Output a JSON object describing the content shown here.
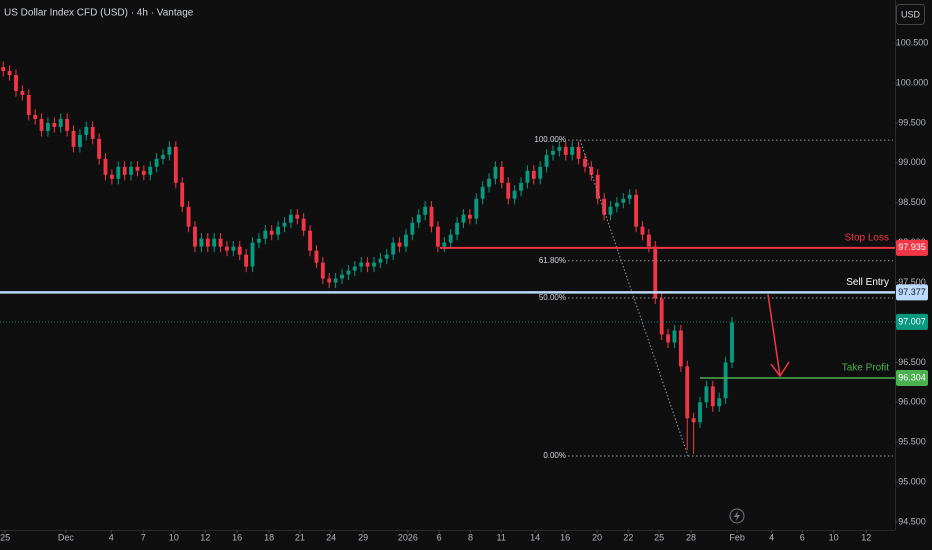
{
  "chart_data": {
    "type": "candlestick",
    "title": "US Dollar Index CFD (USD) · 4h · Vantage",
    "currency": "USD",
    "up_color": "#089981",
    "down_color": "#f23645",
    "xlim": [
      -0.5,
      139.5
    ],
    "ylim": [
      94.4,
      101.04
    ],
    "xticks": [
      {
        "value": 0.3,
        "label": "25"
      },
      {
        "value": 9.8,
        "label": "Dec"
      },
      {
        "value": 16.9,
        "label": "4"
      },
      {
        "value": 21.9,
        "label": "7"
      },
      {
        "value": 26.7,
        "label": "10"
      },
      {
        "value": 31.6,
        "label": "12"
      },
      {
        "value": 36.6,
        "label": "16"
      },
      {
        "value": 41.6,
        "label": "18"
      },
      {
        "value": 46.4,
        "label": "21"
      },
      {
        "value": 51.3,
        "label": "24"
      },
      {
        "value": 56.3,
        "label": "29"
      },
      {
        "value": 63.3,
        "label": "2026"
      },
      {
        "value": 68.2,
        "label": "6"
      },
      {
        "value": 73.1,
        "label": "8"
      },
      {
        "value": 77.9,
        "label": "11"
      },
      {
        "value": 83.2,
        "label": "14"
      },
      {
        "value": 87.9,
        "label": "16"
      },
      {
        "value": 92.9,
        "label": "20"
      },
      {
        "value": 97.8,
        "label": "22"
      },
      {
        "value": 102.6,
        "label": "25"
      },
      {
        "value": 107.6,
        "label": "28"
      },
      {
        "value": 114.8,
        "label": "Feb"
      },
      {
        "value": 120.2,
        "label": "4"
      },
      {
        "value": 125,
        "label": "6"
      },
      {
        "value": 129.9,
        "label": "10"
      },
      {
        "value": 135,
        "label": "12"
      }
    ],
    "yticks": [
      {
        "value": 94.5,
        "label": "94.500"
      },
      {
        "value": 95,
        "label": "95.000"
      },
      {
        "value": 95.5,
        "label": "95.500"
      },
      {
        "value": 96,
        "label": "96.000"
      },
      {
        "value": 96.5,
        "label": "96.500"
      },
      {
        "value": 97,
        "label": "97.000"
      },
      {
        "value": 97.5,
        "label": "97.500"
      },
      {
        "value": 98,
        "label": "98.000"
      },
      {
        "value": 98.5,
        "label": "98.500"
      },
      {
        "value": 99,
        "label": "99.000"
      },
      {
        "value": 99.5,
        "label": "99.500"
      },
      {
        "value": 100,
        "label": "100.000"
      },
      {
        "value": 100.5,
        "label": "100.500"
      }
    ],
    "open": [
      100.2,
      100.15,
      100.1,
      99.9,
      99.85,
      99.6,
      99.55,
      99.4,
      99.5,
      99.45,
      99.55,
      99.4,
      99.2,
      99.35,
      99.45,
      99.3,
      99.05,
      98.85,
      98.8,
      98.95,
      98.85,
      98.95,
      98.9,
      98.85,
      98.95,
      99.05,
      99.1,
      99.2,
      98.75,
      98.45,
      98.2,
      97.95,
      98.05,
      97.95,
      98.05,
      97.95,
      97.9,
      97.95,
      97.85,
      97.7,
      98.0,
      98.05,
      98.15,
      98.1,
      98.2,
      98.25,
      98.35,
      98.3,
      98.15,
      97.9,
      97.75,
      97.55,
      97.5,
      97.55,
      97.6,
      97.65,
      97.7,
      97.75,
      97.7,
      97.75,
      97.8,
      97.85,
      98.0,
      97.95,
      98.1,
      98.25,
      98.35,
      98.45,
      98.2,
      97.95,
      98.0,
      98.1,
      98.25,
      98.35,
      98.3,
      98.55,
      98.7,
      98.8,
      98.95,
      98.75,
      98.55,
      98.65,
      98.75,
      98.9,
      98.8,
      98.95,
      99.1,
      99.15,
      99.2,
      99.1,
      99.2,
      99.05,
      98.95,
      98.85,
      98.55,
      98.35,
      98.45,
      98.5,
      98.55,
      98.6,
      98.2,
      98.1,
      97.95,
      97.3,
      96.85,
      96.75,
      96.9,
      96.45,
      95.8,
      95.75,
      96.0,
      96.2,
      95.95,
      96.05,
      96.5
    ],
    "high": [
      100.27,
      100.22,
      100.17,
      99.97,
      99.92,
      99.67,
      99.62,
      99.57,
      99.57,
      99.62,
      99.62,
      99.47,
      99.42,
      99.52,
      99.52,
      99.37,
      99.12,
      98.92,
      99.02,
      99.02,
      99.02,
      99.02,
      98.97,
      99.02,
      99.12,
      99.17,
      99.27,
      99.27,
      98.82,
      98.52,
      98.27,
      98.12,
      98.12,
      98.12,
      98.12,
      98.02,
      98.02,
      98.02,
      97.92,
      98.07,
      98.12,
      98.22,
      98.22,
      98.27,
      98.32,
      98.42,
      98.42,
      98.37,
      98.22,
      97.97,
      97.82,
      97.62,
      97.62,
      97.67,
      97.72,
      97.77,
      97.82,
      97.82,
      97.82,
      97.87,
      97.92,
      98.07,
      98.07,
      98.17,
      98.32,
      98.42,
      98.52,
      98.52,
      98.27,
      98.07,
      98.17,
      98.32,
      98.42,
      98.42,
      98.62,
      98.77,
      98.87,
      99.02,
      99.02,
      98.82,
      98.72,
      98.82,
      98.97,
      98.97,
      99.02,
      99.17,
      99.22,
      99.27,
      99.27,
      99.27,
      99.27,
      99.12,
      99.02,
      98.92,
      98.62,
      98.52,
      98.57,
      98.62,
      98.67,
      98.67,
      98.27,
      98.17,
      98.02,
      97.37,
      96.92,
      96.97,
      96.97,
      96.52,
      95.87,
      96.07,
      96.27,
      96.27,
      96.12,
      96.57,
      97.07
    ],
    "low": [
      100.08,
      100.03,
      99.83,
      99.78,
      99.53,
      99.48,
      99.33,
      99.33,
      99.38,
      99.38,
      99.33,
      99.13,
      99.13,
      99.28,
      99.23,
      98.98,
      98.78,
      98.73,
      98.73,
      98.78,
      98.78,
      98.83,
      98.78,
      98.78,
      98.88,
      98.98,
      99.03,
      98.68,
      98.38,
      98.13,
      97.88,
      97.88,
      97.88,
      97.88,
      97.88,
      97.83,
      97.83,
      97.78,
      97.63,
      97.63,
      97.93,
      97.98,
      98.03,
      98.03,
      98.13,
      98.18,
      98.23,
      98.08,
      97.83,
      97.68,
      97.48,
      97.43,
      97.43,
      97.48,
      97.53,
      97.58,
      97.63,
      97.63,
      97.63,
      97.68,
      97.73,
      97.78,
      97.88,
      97.88,
      98.03,
      98.18,
      98.28,
      98.13,
      97.88,
      97.88,
      97.93,
      98.03,
      98.18,
      98.23,
      98.23,
      98.48,
      98.63,
      98.73,
      98.68,
      98.48,
      98.48,
      98.58,
      98.68,
      98.73,
      98.73,
      98.88,
      99.03,
      99.08,
      99.03,
      99.03,
      98.98,
      98.88,
      98.78,
      98.48,
      98.28,
      98.28,
      98.38,
      98.43,
      98.48,
      98.13,
      98.03,
      97.88,
      97.23,
      96.78,
      96.68,
      96.68,
      96.38,
      95.4,
      95.35,
      95.68,
      95.93,
      95.88,
      95.88,
      95.98,
      96.43
    ],
    "close": [
      100.15,
      100.1,
      99.9,
      99.85,
      99.6,
      99.55,
      99.4,
      99.5,
      99.45,
      99.55,
      99.4,
      99.2,
      99.35,
      99.45,
      99.3,
      99.05,
      98.85,
      98.8,
      98.95,
      98.85,
      98.95,
      98.9,
      98.85,
      98.95,
      99.05,
      99.1,
      99.2,
      98.75,
      98.45,
      98.2,
      97.95,
      98.05,
      97.95,
      98.05,
      97.95,
      97.9,
      97.95,
      97.85,
      97.7,
      98.0,
      98.05,
      98.15,
      98.1,
      98.2,
      98.25,
      98.35,
      98.3,
      98.15,
      97.9,
      97.75,
      97.55,
      97.5,
      97.55,
      97.6,
      97.65,
      97.7,
      97.75,
      97.7,
      97.75,
      97.8,
      97.85,
      98.0,
      97.95,
      98.1,
      98.25,
      98.35,
      98.45,
      98.2,
      97.95,
      98.0,
      98.1,
      98.25,
      98.35,
      98.3,
      98.55,
      98.7,
      98.8,
      98.95,
      98.75,
      98.55,
      98.65,
      98.75,
      98.9,
      98.8,
      98.95,
      99.1,
      99.15,
      99.2,
      99.1,
      99.2,
      99.05,
      98.95,
      98.85,
      98.55,
      98.35,
      98.45,
      98.5,
      98.55,
      98.6,
      98.2,
      98.1,
      97.95,
      97.3,
      96.85,
      96.75,
      96.9,
      96.45,
      95.8,
      95.75,
      96.0,
      96.2,
      95.95,
      96.05,
      96.5,
      97.0
    ],
    "current_price": {
      "value": 97.007,
      "label": "97.007",
      "color": "#089981"
    },
    "levels": [
      {
        "name": "Stop Loss",
        "value": 97.935,
        "label": "97.935",
        "color": "#f23645"
      },
      {
        "name": "Sell Entry",
        "value": 97.377,
        "label": "97.377",
        "color": "#bbd9fb"
      },
      {
        "name": "Take Profit",
        "value": 96.304,
        "label": "96.304",
        "color": "#4caf50"
      }
    ],
    "fib_levels": [
      {
        "label": "100.00%",
        "value": 99.285
      },
      {
        "label": "61.80%",
        "value": 97.773
      },
      {
        "label": "50.00%",
        "value": 97.306
      },
      {
        "label": "0.00%",
        "value": 95.327
      }
    ]
  }
}
